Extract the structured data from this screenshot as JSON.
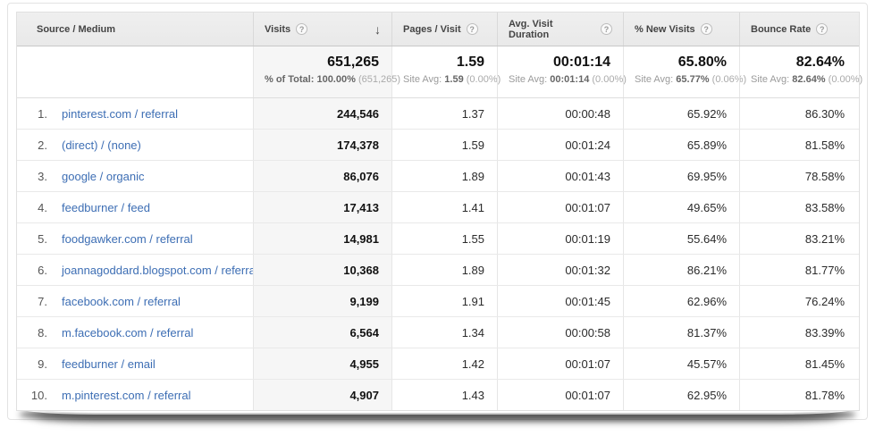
{
  "icons": {
    "help": "?",
    "sort_desc": "↓"
  },
  "colors": {
    "link_blue": "#3d6eb4",
    "header_bg": "#ececec",
    "sorted_col_bg": "#f6f6f6"
  },
  "table": {
    "columns": [
      {
        "label": "Source / Medium"
      },
      {
        "label": "Visits"
      },
      {
        "label": "Pages / Visit"
      },
      {
        "label": "Avg. Visit Duration"
      },
      {
        "label": "% New Visits"
      },
      {
        "label": "Bounce Rate"
      }
    ],
    "summary": {
      "visits": {
        "value": "651,265",
        "sub_prefix": "% of Total: 100.00%",
        "sub_delta": "(651,265)"
      },
      "pages_per_visit": {
        "value": "1.59",
        "sub_prefix": "Site Avg:",
        "sub_value": "1.59",
        "sub_delta": "(0.00%)"
      },
      "avg_duration": {
        "value": "00:01:14",
        "sub_prefix": "Site Avg:",
        "sub_value": "00:01:14",
        "sub_delta": "(0.00%)"
      },
      "new_visits": {
        "value": "65.80%",
        "sub_prefix": "Site Avg:",
        "sub_value": "65.77%",
        "sub_delta": "(0.06%)"
      },
      "bounce_rate": {
        "value": "82.64%",
        "sub_prefix": "Site Avg:",
        "sub_value": "82.64%",
        "sub_delta": "(0.00%)"
      }
    },
    "rows": [
      {
        "index": "1.",
        "source": "pinterest.com / referral",
        "visits": "244,546",
        "pages_per_visit": "1.37",
        "avg_duration": "00:00:48",
        "new_visits": "65.92%",
        "bounce_rate": "86.30%"
      },
      {
        "index": "2.",
        "source": "(direct) / (none)",
        "visits": "174,378",
        "pages_per_visit": "1.59",
        "avg_duration": "00:01:24",
        "new_visits": "65.89%",
        "bounce_rate": "81.58%"
      },
      {
        "index": "3.",
        "source": "google / organic",
        "visits": "86,076",
        "pages_per_visit": "1.89",
        "avg_duration": "00:01:43",
        "new_visits": "69.95%",
        "bounce_rate": "78.58%"
      },
      {
        "index": "4.",
        "source": "feedburner / feed",
        "visits": "17,413",
        "pages_per_visit": "1.41",
        "avg_duration": "00:01:07",
        "new_visits": "49.65%",
        "bounce_rate": "83.58%"
      },
      {
        "index": "5.",
        "source": "foodgawker.com / referral",
        "visits": "14,981",
        "pages_per_visit": "1.55",
        "avg_duration": "00:01:19",
        "new_visits": "55.64%",
        "bounce_rate": "83.21%"
      },
      {
        "index": "6.",
        "source": "joannagoddard.blogspot.com / referral",
        "visits": "10,368",
        "pages_per_visit": "1.89",
        "avg_duration": "00:01:32",
        "new_visits": "86.21%",
        "bounce_rate": "81.77%"
      },
      {
        "index": "7.",
        "source": "facebook.com / referral",
        "visits": "9,199",
        "pages_per_visit": "1.91",
        "avg_duration": "00:01:45",
        "new_visits": "62.96%",
        "bounce_rate": "76.24%"
      },
      {
        "index": "8.",
        "source": "m.facebook.com / referral",
        "visits": "6,564",
        "pages_per_visit": "1.34",
        "avg_duration": "00:00:58",
        "new_visits": "81.37%",
        "bounce_rate": "83.39%"
      },
      {
        "index": "9.",
        "source": "feedburner / email",
        "visits": "4,955",
        "pages_per_visit": "1.42",
        "avg_duration": "00:01:07",
        "new_visits": "45.57%",
        "bounce_rate": "81.45%"
      },
      {
        "index": "10.",
        "source": "m.pinterest.com / referral",
        "visits": "4,907",
        "pages_per_visit": "1.43",
        "avg_duration": "00:01:07",
        "new_visits": "62.95%",
        "bounce_rate": "81.78%"
      }
    ]
  }
}
